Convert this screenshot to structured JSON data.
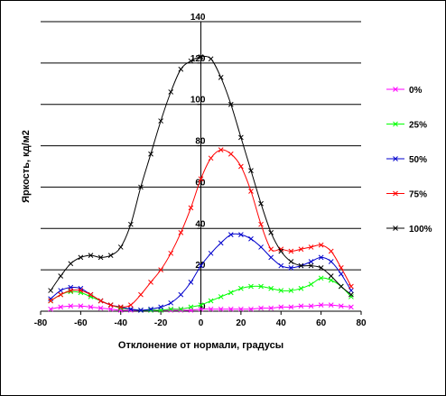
{
  "chart_data": {
    "type": "line",
    "title": "",
    "xlabel": "Отклонение от нормали, градусы",
    "ylabel": "Яркость, кд/м2",
    "xlim": [
      -80,
      80
    ],
    "ylim": [
      0,
      140
    ],
    "x_ticks": [
      "-80",
      "-60",
      "-40",
      "-20",
      "0",
      "20",
      "40",
      "60",
      "80"
    ],
    "y_ticks": [
      "0",
      "20",
      "40",
      "60",
      "80",
      "100",
      "120",
      "140"
    ],
    "grid": "horizontal",
    "legend_position": "right",
    "series": [
      {
        "name": "0%",
        "color": "#ff00ff",
        "points": [
          [
            -75,
            1
          ],
          [
            -70,
            2
          ],
          [
            -65,
            2.5
          ],
          [
            -60,
            2.5
          ],
          [
            -55,
            2
          ],
          [
            -50,
            1.5
          ],
          [
            -45,
            1
          ],
          [
            -40,
            0.5
          ],
          [
            -35,
            0.5
          ],
          [
            -30,
            0.5
          ],
          [
            -25,
            0.5
          ],
          [
            -20,
            0.5
          ],
          [
            -15,
            0.5
          ],
          [
            -10,
            0.5
          ],
          [
            -5,
            0.5
          ],
          [
            0,
            1
          ],
          [
            5,
            1
          ],
          [
            10,
            1
          ],
          [
            15,
            1
          ],
          [
            20,
            1
          ],
          [
            25,
            1
          ],
          [
            30,
            1.5
          ],
          [
            35,
            1.5
          ],
          [
            40,
            2
          ],
          [
            45,
            2
          ],
          [
            50,
            2.5
          ],
          [
            55,
            2.5
          ],
          [
            60,
            3
          ],
          [
            65,
            3
          ],
          [
            70,
            2.5
          ],
          [
            75,
            2
          ]
        ]
      },
      {
        "name": "25%",
        "color": "#00ff00",
        "points": [
          [
            -75,
            5
          ],
          [
            -70,
            8
          ],
          [
            -65,
            9.5
          ],
          [
            -60,
            9
          ],
          [
            -55,
            7
          ],
          [
            -50,
            5
          ],
          [
            -45,
            3
          ],
          [
            -40,
            1.5
          ],
          [
            -35,
            1
          ],
          [
            -30,
            0.5
          ],
          [
            -25,
            0.5
          ],
          [
            -20,
            0.5
          ],
          [
            -15,
            1
          ],
          [
            -10,
            1
          ],
          [
            -5,
            2
          ],
          [
            0,
            3
          ],
          [
            5,
            5
          ],
          [
            10,
            7
          ],
          [
            15,
            9
          ],
          [
            20,
            11
          ],
          [
            25,
            12
          ],
          [
            30,
            12
          ],
          [
            35,
            11
          ],
          [
            40,
            10
          ],
          [
            45,
            10
          ],
          [
            50,
            11
          ],
          [
            55,
            13
          ],
          [
            60,
            16
          ],
          [
            65,
            15
          ],
          [
            70,
            12
          ],
          [
            75,
            7
          ]
        ]
      },
      {
        "name": "50%",
        "color": "#0000cc",
        "points": [
          [
            -75,
            6
          ],
          [
            -70,
            10
          ],
          [
            -65,
            11.5
          ],
          [
            -60,
            11
          ],
          [
            -55,
            8
          ],
          [
            -50,
            5
          ],
          [
            -45,
            3
          ],
          [
            -40,
            2
          ],
          [
            -35,
            1
          ],
          [
            -30,
            0.5
          ],
          [
            -25,
            1
          ],
          [
            -20,
            2
          ],
          [
            -15,
            4
          ],
          [
            -10,
            8
          ],
          [
            -5,
            14
          ],
          [
            0,
            22
          ],
          [
            5,
            28
          ],
          [
            10,
            33
          ],
          [
            15,
            37
          ],
          [
            20,
            37
          ],
          [
            25,
            35
          ],
          [
            30,
            31
          ],
          [
            35,
            26
          ],
          [
            40,
            22
          ],
          [
            45,
            21
          ],
          [
            50,
            22
          ],
          [
            55,
            24
          ],
          [
            60,
            26
          ],
          [
            65,
            24
          ],
          [
            70,
            18
          ],
          [
            75,
            10
          ]
        ]
      },
      {
        "name": "75%",
        "color": "#ff0000",
        "points": [
          [
            -75,
            5
          ],
          [
            -70,
            8
          ],
          [
            -65,
            10
          ],
          [
            -60,
            10
          ],
          [
            -55,
            8
          ],
          [
            -50,
            5
          ],
          [
            -45,
            3
          ],
          [
            -40,
            2
          ],
          [
            -35,
            3
          ],
          [
            -30,
            8
          ],
          [
            -25,
            14
          ],
          [
            -20,
            20
          ],
          [
            -15,
            28
          ],
          [
            -10,
            38
          ],
          [
            -5,
            50
          ],
          [
            0,
            64
          ],
          [
            5,
            74
          ],
          [
            10,
            78
          ],
          [
            15,
            76
          ],
          [
            20,
            70
          ],
          [
            25,
            58
          ],
          [
            30,
            42
          ],
          [
            35,
            30
          ],
          [
            40,
            30
          ],
          [
            45,
            29
          ],
          [
            50,
            30
          ],
          [
            55,
            31
          ],
          [
            60,
            32
          ],
          [
            65,
            29
          ],
          [
            70,
            21
          ],
          [
            75,
            12
          ]
        ]
      },
      {
        "name": "100%",
        "color": "#000000",
        "points": [
          [
            -75,
            10
          ],
          [
            -70,
            17
          ],
          [
            -65,
            23
          ],
          [
            -60,
            26
          ],
          [
            -55,
            27
          ],
          [
            -50,
            26
          ],
          [
            -45,
            27
          ],
          [
            -40,
            31
          ],
          [
            -35,
            42
          ],
          [
            -30,
            60
          ],
          [
            -25,
            76
          ],
          [
            -20,
            92
          ],
          [
            -15,
            106
          ],
          [
            -10,
            117
          ],
          [
            -5,
            121
          ],
          [
            0,
            123
          ],
          [
            5,
            122
          ],
          [
            10,
            113
          ],
          [
            15,
            100
          ],
          [
            20,
            84
          ],
          [
            25,
            68
          ],
          [
            30,
            52
          ],
          [
            35,
            38
          ],
          [
            40,
            29
          ],
          [
            45,
            24
          ],
          [
            50,
            22
          ],
          [
            55,
            22
          ],
          [
            60,
            21
          ],
          [
            65,
            17
          ],
          [
            70,
            12
          ],
          [
            75,
            8
          ]
        ]
      }
    ]
  }
}
